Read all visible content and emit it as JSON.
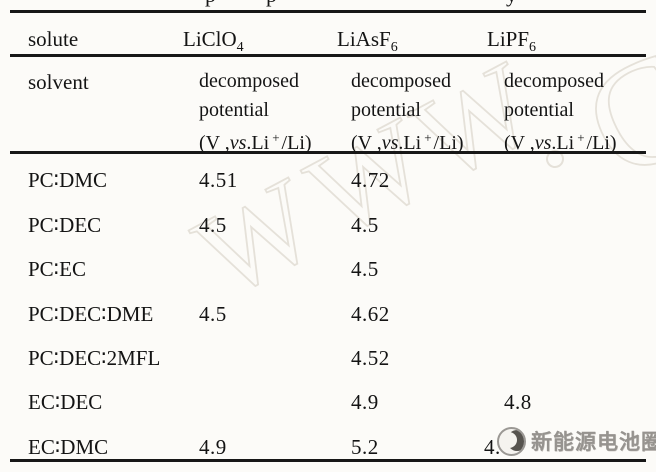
{
  "page": {
    "background": "#fcfbf8"
  },
  "caption_fragments": [
    "p",
    "p",
    "y"
  ],
  "table": {
    "header": {
      "solute_label": "solute",
      "solvent_label": "solvent",
      "solutes": [
        {
          "name": "LiClO",
          "sub": "4"
        },
        {
          "name": "LiAsF",
          "sub": "6"
        },
        {
          "name": "LiPF",
          "sub": "6"
        }
      ],
      "unit": {
        "line1": "decomposed",
        "line2": "potential",
        "line3_open": "(V ,",
        "line3_vs": "vs",
        "line3_mid": ".Li",
        "line3_sup": "+",
        "line3_close": "/Li)"
      }
    },
    "rows": [
      {
        "solvent": "PC∶DMC",
        "values": [
          "4.51",
          "4.72",
          ""
        ]
      },
      {
        "solvent": "PC∶DEC",
        "values": [
          "4.5",
          "4.5",
          ""
        ]
      },
      {
        "solvent": "PC∶EC",
        "values": [
          "",
          "4.5",
          ""
        ]
      },
      {
        "solvent": "PC∶DEC∶DME",
        "values": [
          "4.5",
          "4.62",
          ""
        ]
      },
      {
        "solvent": "PC∶DEC∶2MFL",
        "values": [
          "",
          "4.52",
          ""
        ]
      },
      {
        "solvent": "EC∶DEC",
        "values": [
          "",
          "4.9",
          "4.8"
        ]
      },
      {
        "solvent": "EC∶DMC",
        "values": [
          "4.9",
          "5.2",
          "4."
        ]
      }
    ]
  },
  "watermark": {
    "letters": [
      "W",
      "W",
      "W",
      "C"
    ],
    "color": "#e5e1d9"
  },
  "logo": {
    "text": "新能源电池圈",
    "color": "#96938f"
  }
}
